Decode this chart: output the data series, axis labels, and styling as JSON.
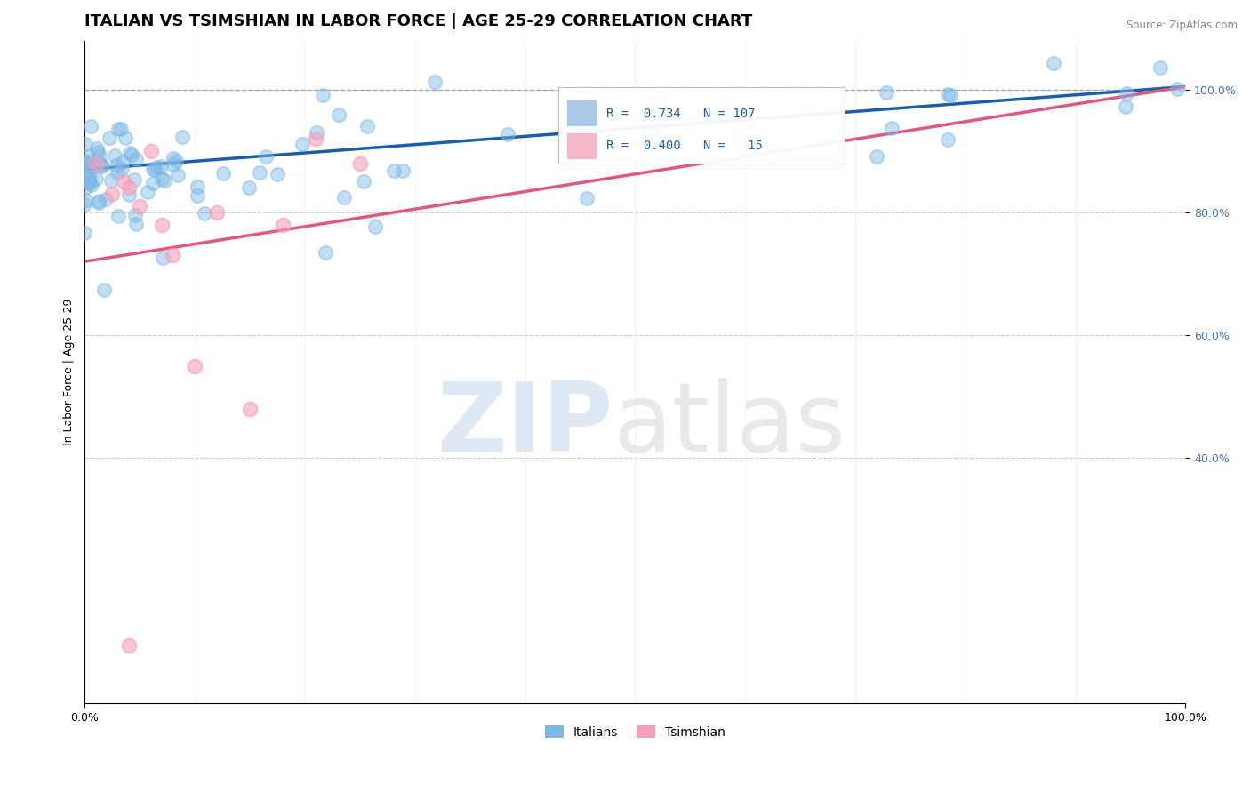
{
  "title": "ITALIAN VS TSIMSHIAN IN LABOR FORCE | AGE 25-29 CORRELATION CHART",
  "source": "Source: ZipAtlas.com",
  "ylabel": "In Labor Force | Age 25-29",
  "xlim": [
    0.0,
    1.0
  ],
  "ylim": [
    0.0,
    1.08
  ],
  "xtick_positions": [
    0.0,
    1.0
  ],
  "xtick_labels": [
    "0.0%",
    "100.0%"
  ],
  "ytick_positions": [
    0.4,
    0.6,
    0.8,
    1.0
  ],
  "ytick_labels": [
    "40.0%",
    "60.0%",
    "80.0%",
    "100.0%"
  ],
  "italian_R": 0.734,
  "italian_N": 107,
  "tsimshian_R": 0.4,
  "tsimshian_N": 15,
  "italian_color": "#7ab8e8",
  "tsimshian_color": "#f4a0b8",
  "italian_line_color": "#1a5fa8",
  "tsimshian_line_color": "#e05880",
  "watermark_zip_color": "#c5d8ee",
  "watermark_atlas_color": "#d8d8d8",
  "legend_box_color_italian": "#aac8e8",
  "legend_box_color_tsimshian": "#f4b8c8",
  "title_fontsize": 13,
  "axis_label_fontsize": 9,
  "tick_fontsize": 9,
  "background_color": "#ffffff",
  "grid_color": "#dddddd",
  "dashed_line_y": 1.0,
  "italian_line_x0": 0.0,
  "italian_line_y0": 0.87,
  "italian_line_x1": 1.0,
  "italian_line_y1": 1.005,
  "tsimshian_line_x0": 0.0,
  "tsimshian_line_y0": 0.72,
  "tsimshian_line_x1": 1.0,
  "tsimshian_line_y1": 1.005
}
